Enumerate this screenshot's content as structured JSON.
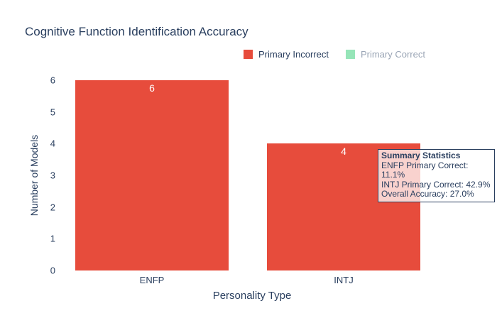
{
  "title": "Cognitive Function Identification Accuracy",
  "legend": {
    "items": [
      {
        "label": "Primary Incorrect",
        "color": "#e74c3c",
        "muted": false
      },
      {
        "label": "Primary Correct",
        "color": "#96e5b8",
        "muted": true
      }
    ]
  },
  "annotation": {
    "title": "Summary Statistics",
    "lines": [
      "ENFP Primary Correct: 11.1%",
      "INTJ Primary Correct: 42.9%",
      "Overall Accuracy: 27.0%"
    ]
  },
  "chart_data": {
    "type": "bar",
    "title": "Cognitive Function Identification Accuracy",
    "categories": [
      "ENFP",
      "INTJ"
    ],
    "series": [
      {
        "name": "Primary Incorrect",
        "values": [
          6,
          4
        ],
        "color": "#e74c3c",
        "visible": true
      },
      {
        "name": "Primary Correct",
        "values": [],
        "color": "#96e5b8",
        "visible": false
      }
    ],
    "bar_labels": [
      "6",
      "4"
    ],
    "xlabel": "Personality Type",
    "ylabel": "Number of Models",
    "ylim": [
      0,
      6
    ],
    "yticks": [
      0,
      1,
      2,
      3,
      4,
      5,
      6
    ],
    "grid": false,
    "legend_position": "top-right"
  }
}
